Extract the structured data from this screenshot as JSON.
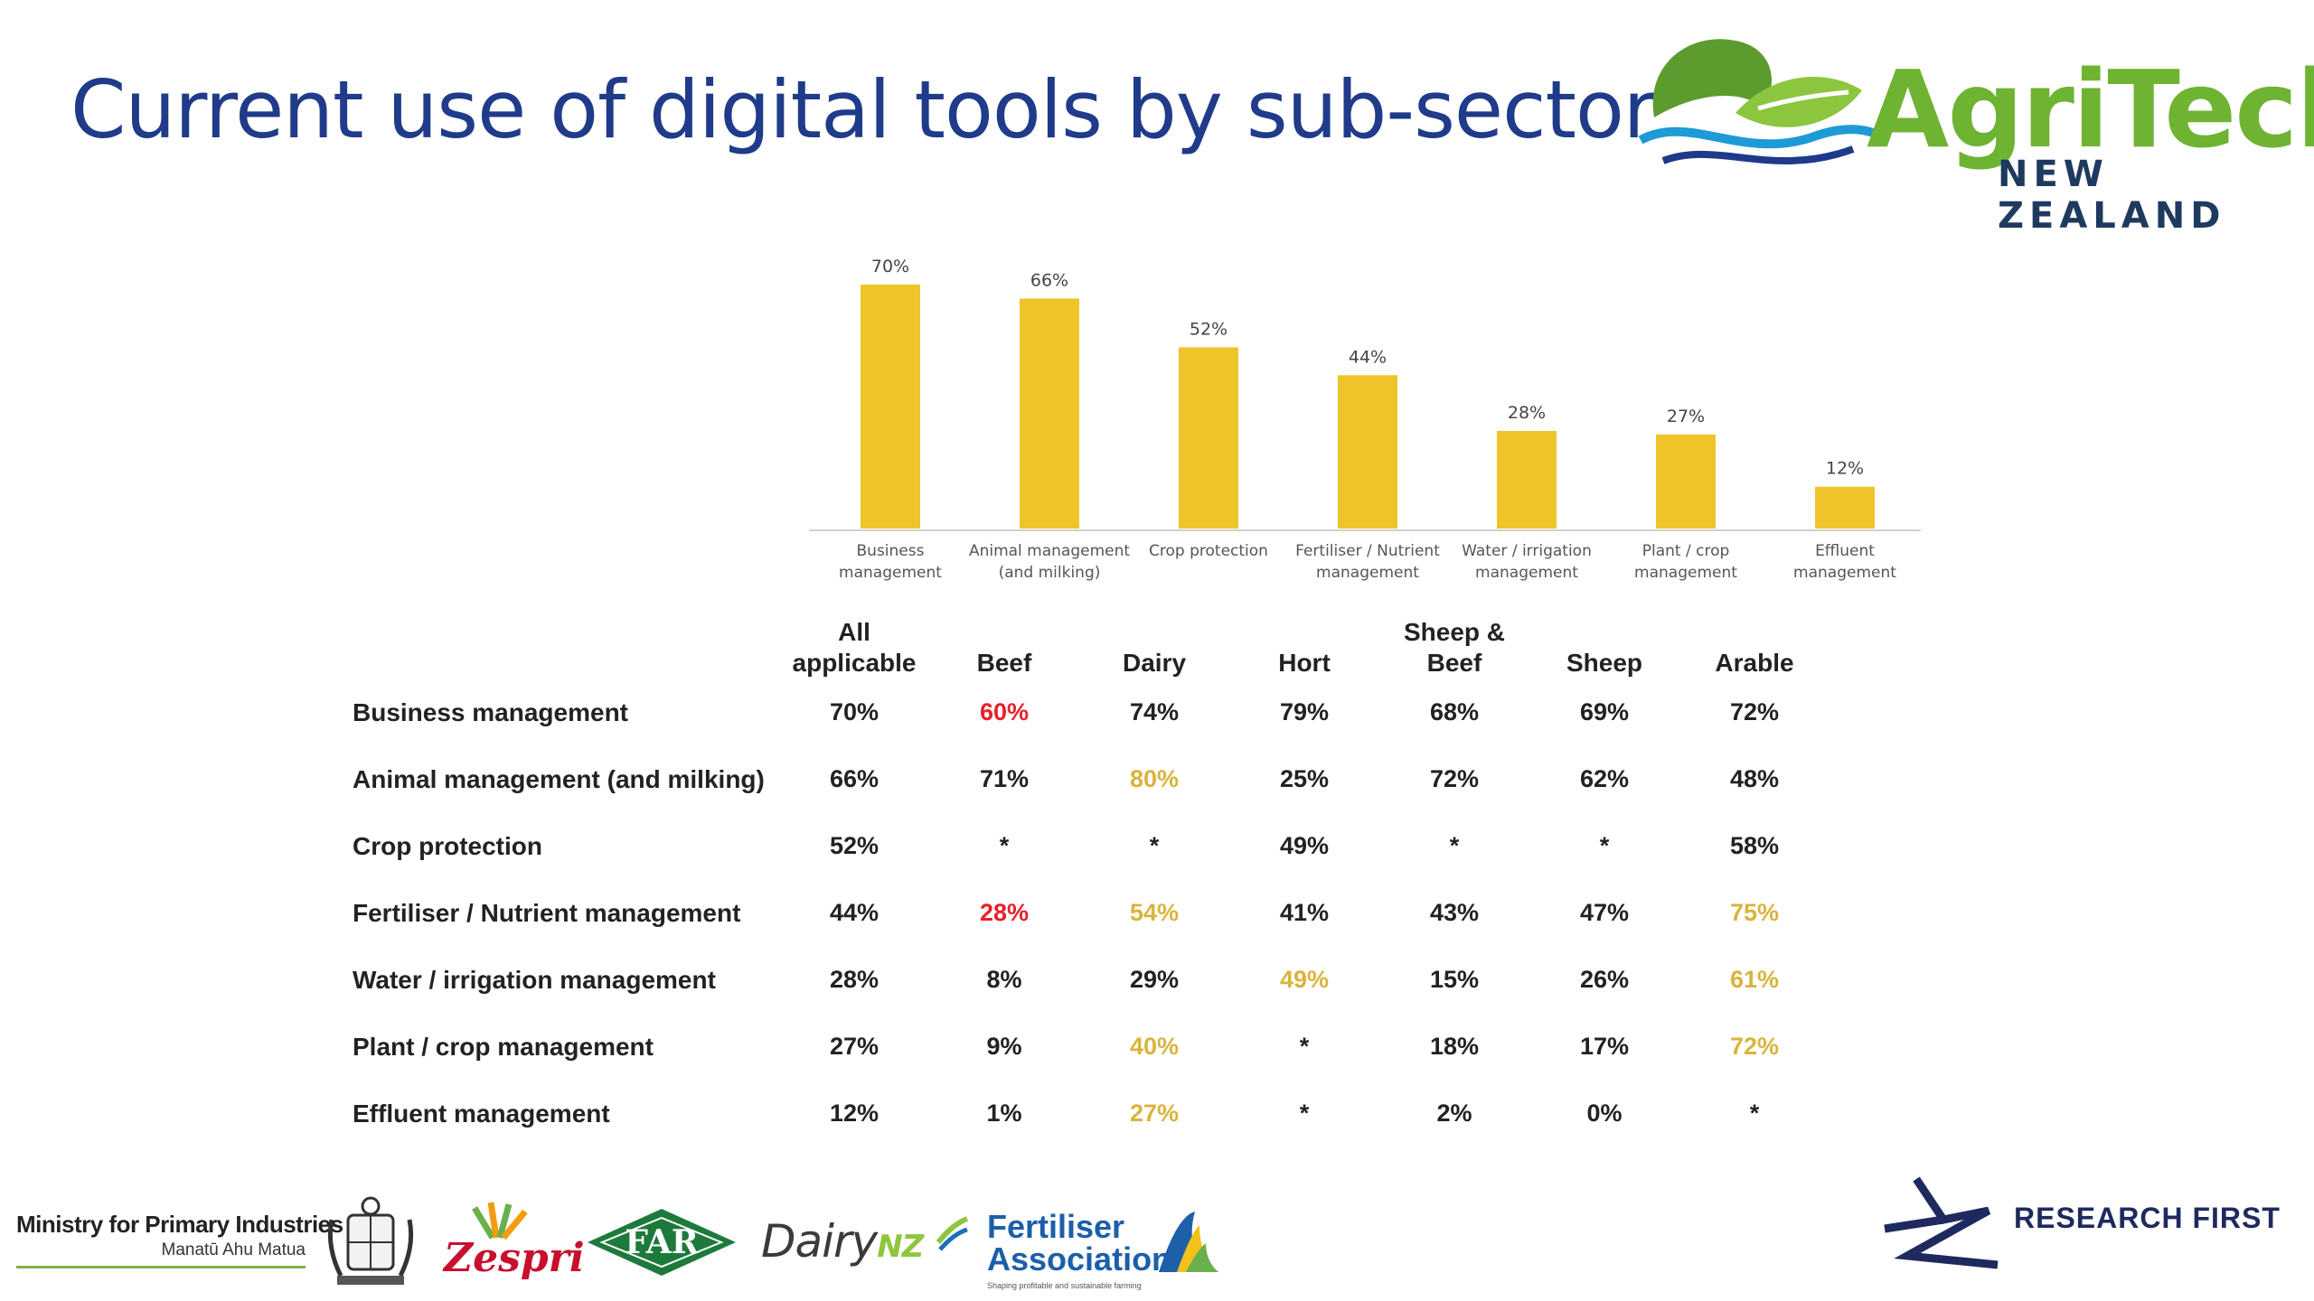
{
  "title": "Current use of digital tools by sub-sector",
  "agritech": {
    "word": "AgriTech",
    "sub": "NEW ZEALAND"
  },
  "chart_data": {
    "type": "bar",
    "categories": [
      [
        "Business",
        "management"
      ],
      [
        "Animal management",
        "(and milking)"
      ],
      [
        "Crop protection"
      ],
      [
        "Fertiliser / Nutrient",
        "management"
      ],
      [
        "Water / irrigation",
        "management"
      ],
      [
        "Plant / crop",
        "management"
      ],
      [
        "Effluent",
        "management"
      ]
    ],
    "values": [
      70,
      66,
      52,
      44,
      28,
      27,
      12
    ],
    "value_labels": [
      "70%",
      "66%",
      "52%",
      "44%",
      "28%",
      "27%",
      "12%"
    ],
    "color": "#eec42a"
  },
  "table": {
    "headers": [
      [
        "All",
        "applicable"
      ],
      [
        "Beef"
      ],
      [
        "Dairy"
      ],
      [
        "Hort"
      ],
      [
        "Sheep &",
        "Beef"
      ],
      [
        "Sheep"
      ],
      [
        "Arable"
      ]
    ],
    "rows": [
      {
        "label": "Business management",
        "cells": [
          "70%",
          "60%",
          "74%",
          "79%",
          "68%",
          "69%",
          "72%"
        ],
        "flags": [
          "",
          "low",
          "",
          "",
          "",
          "",
          ""
        ]
      },
      {
        "label": "Animal management (and milking)",
        "cells": [
          "66%",
          "71%",
          "80%",
          "25%",
          "72%",
          "62%",
          "48%"
        ],
        "flags": [
          "",
          "",
          "high",
          "",
          "",
          "",
          ""
        ]
      },
      {
        "label": "Crop protection",
        "cells": [
          "52%",
          "*",
          "*",
          "49%",
          "*",
          "*",
          "58%"
        ],
        "flags": [
          "",
          "",
          "",
          "",
          "",
          "",
          ""
        ]
      },
      {
        "label": "Fertiliser / Nutrient management",
        "cells": [
          "44%",
          "28%",
          "54%",
          "41%",
          "43%",
          "47%",
          "75%"
        ],
        "flags": [
          "",
          "low",
          "high",
          "",
          "",
          "",
          "high"
        ]
      },
      {
        "label": "Water / irrigation management",
        "cells": [
          "28%",
          "8%",
          "29%",
          "49%",
          "15%",
          "26%",
          "61%"
        ],
        "flags": [
          "",
          "",
          "",
          "high",
          "",
          "",
          "high"
        ]
      },
      {
        "label": "Plant / crop management",
        "cells": [
          "27%",
          "9%",
          "40%",
          "*",
          "18%",
          "17%",
          "72%"
        ],
        "flags": [
          "",
          "",
          "high",
          "",
          "",
          "",
          "high"
        ]
      },
      {
        "label": "Effluent management",
        "cells": [
          "12%",
          "1%",
          "27%",
          "*",
          "2%",
          "0%",
          "*"
        ],
        "flags": [
          "",
          "",
          "high",
          "",
          "",
          "",
          ""
        ]
      }
    ],
    "colors": {
      "low": "#e8202a",
      "high": "#d9b43c",
      "normal": "#222222"
    }
  },
  "footer": {
    "mpi_title": "Ministry for Primary Industries",
    "mpi_sub": "Manatū Ahu Matua",
    "zespri": "Zespri",
    "far": "FAR",
    "dairy_main": "Dairy",
    "dairy_nz": "NZ",
    "fert_line1": "Fertiliser",
    "fert_line2": "Association",
    "fert_tag": "Shaping profitable and sustainable farming",
    "research_first": "RESEARCH FIRST"
  }
}
